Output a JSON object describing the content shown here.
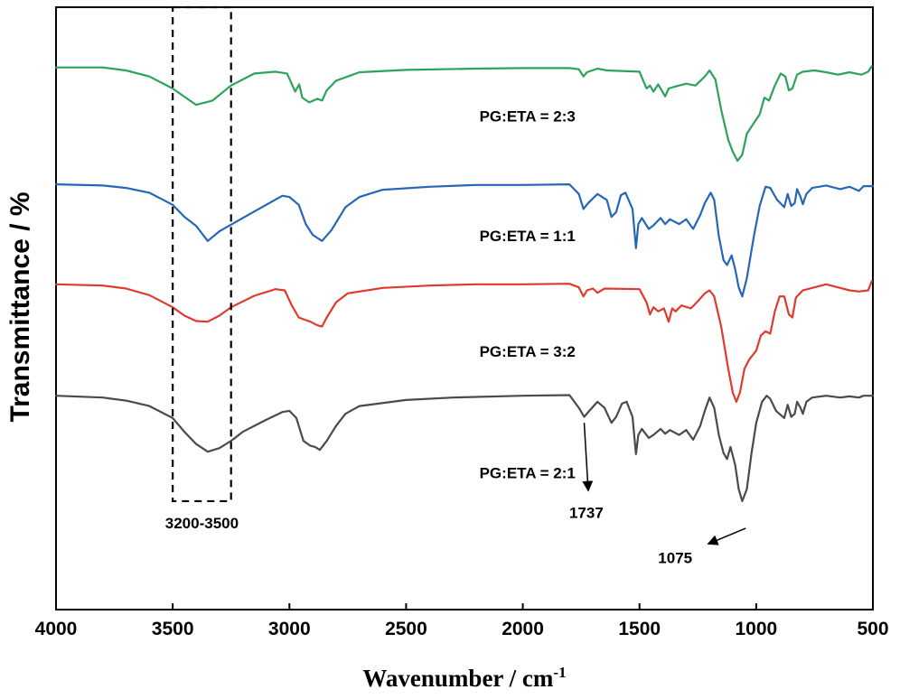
{
  "chart_data": {
    "type": "line",
    "title": "",
    "xlabel": "Wavenumber / cm",
    "xlabel_sup": "-1",
    "ylabel": "Transmittance / %",
    "xlim": [
      4000,
      500
    ],
    "x_reversed": true,
    "ylim": [
      0,
      1
    ],
    "y_ticks_shown": false,
    "grid": false,
    "x_ticks": [
      4000,
      3500,
      3000,
      2500,
      2000,
      1500,
      1000,
      500
    ],
    "x_tick_labels": [
      "4000",
      "3500",
      "3000",
      "2500",
      "2000",
      "1500",
      "1000",
      "500"
    ],
    "series": [
      {
        "name": "PG:ETA = 2:3",
        "color": "#2ca25a",
        "label": "PG:ETA = 2:3",
        "points": [
          [
            4000,
            0.9
          ],
          [
            3800,
            0.9
          ],
          [
            3700,
            0.895
          ],
          [
            3600,
            0.885
          ],
          [
            3500,
            0.865
          ],
          [
            3400,
            0.838
          ],
          [
            3330,
            0.845
          ],
          [
            3250,
            0.87
          ],
          [
            3150,
            0.89
          ],
          [
            3060,
            0.893
          ],
          [
            3010,
            0.89
          ],
          [
            2975,
            0.86
          ],
          [
            2958,
            0.872
          ],
          [
            2945,
            0.85
          ],
          [
            2915,
            0.842
          ],
          [
            2880,
            0.848
          ],
          [
            2860,
            0.845
          ],
          [
            2840,
            0.862
          ],
          [
            2800,
            0.878
          ],
          [
            2700,
            0.892
          ],
          [
            2500,
            0.896
          ],
          [
            2200,
            0.898
          ],
          [
            2000,
            0.899
          ],
          [
            1800,
            0.899
          ],
          [
            1760,
            0.897
          ],
          [
            1740,
            0.885
          ],
          [
            1725,
            0.892
          ],
          [
            1680,
            0.898
          ],
          [
            1640,
            0.895
          ],
          [
            1500,
            0.893
          ],
          [
            1470,
            0.865
          ],
          [
            1455,
            0.87
          ],
          [
            1440,
            0.86
          ],
          [
            1420,
            0.872
          ],
          [
            1390,
            0.852
          ],
          [
            1375,
            0.865
          ],
          [
            1350,
            0.868
          ],
          [
            1300,
            0.873
          ],
          [
            1260,
            0.87
          ],
          [
            1220,
            0.885
          ],
          [
            1200,
            0.895
          ],
          [
            1175,
            0.88
          ],
          [
            1150,
            0.83
          ],
          [
            1120,
            0.78
          ],
          [
            1100,
            0.76
          ],
          [
            1080,
            0.745
          ],
          [
            1060,
            0.755
          ],
          [
            1040,
            0.79
          ],
          [
            1010,
            0.808
          ],
          [
            985,
            0.822
          ],
          [
            965,
            0.85
          ],
          [
            945,
            0.845
          ],
          [
            920,
            0.87
          ],
          [
            895,
            0.89
          ],
          [
            875,
            0.885
          ],
          [
            860,
            0.862
          ],
          [
            845,
            0.865
          ],
          [
            825,
            0.888
          ],
          [
            800,
            0.893
          ],
          [
            750,
            0.895
          ],
          [
            700,
            0.892
          ],
          [
            650,
            0.888
          ],
          [
            600,
            0.892
          ],
          [
            550,
            0.888
          ],
          [
            520,
            0.893
          ],
          [
            505,
            0.902
          ]
        ]
      },
      {
        "name": "PG:ETA = 1:1",
        "color": "#2566b6",
        "label": "PG:ETA = 1:1",
        "points": [
          [
            4000,
            0.706
          ],
          [
            3800,
            0.704
          ],
          [
            3700,
            0.7
          ],
          [
            3600,
            0.692
          ],
          [
            3500,
            0.672
          ],
          [
            3450,
            0.652
          ],
          [
            3400,
            0.637
          ],
          [
            3350,
            0.612
          ],
          [
            3300,
            0.628
          ],
          [
            3200,
            0.65
          ],
          [
            3100,
            0.672
          ],
          [
            3030,
            0.687
          ],
          [
            3000,
            0.685
          ],
          [
            2960,
            0.672
          ],
          [
            2930,
            0.64
          ],
          [
            2900,
            0.622
          ],
          [
            2880,
            0.617
          ],
          [
            2860,
            0.612
          ],
          [
            2820,
            0.63
          ],
          [
            2760,
            0.668
          ],
          [
            2700,
            0.685
          ],
          [
            2600,
            0.697
          ],
          [
            2400,
            0.702
          ],
          [
            2200,
            0.705
          ],
          [
            2000,
            0.705
          ],
          [
            1800,
            0.706
          ],
          [
            1760,
            0.69
          ],
          [
            1740,
            0.665
          ],
          [
            1720,
            0.675
          ],
          [
            1680,
            0.69
          ],
          [
            1640,
            0.68
          ],
          [
            1620,
            0.652
          ],
          [
            1600,
            0.66
          ],
          [
            1580,
            0.688
          ],
          [
            1560,
            0.692
          ],
          [
            1530,
            0.665
          ],
          [
            1515,
            0.6
          ],
          [
            1505,
            0.64
          ],
          [
            1490,
            0.65
          ],
          [
            1460,
            0.632
          ],
          [
            1440,
            0.638
          ],
          [
            1410,
            0.65
          ],
          [
            1390,
            0.64
          ],
          [
            1370,
            0.648
          ],
          [
            1330,
            0.64
          ],
          [
            1300,
            0.648
          ],
          [
            1270,
            0.632
          ],
          [
            1240,
            0.655
          ],
          [
            1220,
            0.675
          ],
          [
            1195,
            0.692
          ],
          [
            1180,
            0.68
          ],
          [
            1160,
            0.62
          ],
          [
            1140,
            0.58
          ],
          [
            1125,
            0.572
          ],
          [
            1105,
            0.588
          ],
          [
            1090,
            0.565
          ],
          [
            1075,
            0.535
          ],
          [
            1060,
            0.52
          ],
          [
            1040,
            0.55
          ],
          [
            1010,
            0.62
          ],
          [
            985,
            0.67
          ],
          [
            960,
            0.702
          ],
          [
            940,
            0.7
          ],
          [
            910,
            0.68
          ],
          [
            880,
            0.668
          ],
          [
            865,
            0.69
          ],
          [
            850,
            0.67
          ],
          [
            835,
            0.675
          ],
          [
            825,
            0.698
          ],
          [
            810,
            0.685
          ],
          [
            800,
            0.673
          ],
          [
            785,
            0.69
          ],
          [
            760,
            0.7
          ],
          [
            700,
            0.704
          ],
          [
            640,
            0.698
          ],
          [
            600,
            0.702
          ],
          [
            560,
            0.695
          ],
          [
            540,
            0.703
          ],
          [
            500,
            0.703
          ]
        ]
      },
      {
        "name": "PG:ETA = 3:2",
        "color": "#e03a2c",
        "label": "PG:ETA = 3:2",
        "points": [
          [
            4000,
            0.54
          ],
          [
            3800,
            0.538
          ],
          [
            3700,
            0.533
          ],
          [
            3600,
            0.522
          ],
          [
            3500,
            0.502
          ],
          [
            3450,
            0.488
          ],
          [
            3400,
            0.479
          ],
          [
            3350,
            0.478
          ],
          [
            3300,
            0.488
          ],
          [
            3250,
            0.502
          ],
          [
            3150,
            0.521
          ],
          [
            3060,
            0.532
          ],
          [
            3020,
            0.53
          ],
          [
            2990,
            0.505
          ],
          [
            2960,
            0.485
          ],
          [
            2940,
            0.482
          ],
          [
            2910,
            0.478
          ],
          [
            2880,
            0.472
          ],
          [
            2860,
            0.47
          ],
          [
            2840,
            0.485
          ],
          [
            2800,
            0.51
          ],
          [
            2750,
            0.525
          ],
          [
            2600,
            0.534
          ],
          [
            2400,
            0.538
          ],
          [
            2200,
            0.54
          ],
          [
            2000,
            0.54
          ],
          [
            1800,
            0.541
          ],
          [
            1760,
            0.535
          ],
          [
            1740,
            0.52
          ],
          [
            1725,
            0.53
          ],
          [
            1700,
            0.533
          ],
          [
            1680,
            0.526
          ],
          [
            1650,
            0.533
          ],
          [
            1500,
            0.532
          ],
          [
            1470,
            0.51
          ],
          [
            1455,
            0.49
          ],
          [
            1440,
            0.502
          ],
          [
            1420,
            0.495
          ],
          [
            1395,
            0.5
          ],
          [
            1375,
            0.478
          ],
          [
            1360,
            0.5
          ],
          [
            1345,
            0.495
          ],
          [
            1320,
            0.505
          ],
          [
            1280,
            0.5
          ],
          [
            1250,
            0.512
          ],
          [
            1220,
            0.525
          ],
          [
            1200,
            0.53
          ],
          [
            1180,
            0.52
          ],
          [
            1150,
            0.47
          ],
          [
            1120,
            0.4
          ],
          [
            1100,
            0.36
          ],
          [
            1085,
            0.345
          ],
          [
            1070,
            0.36
          ],
          [
            1050,
            0.4
          ],
          [
            1030,
            0.415
          ],
          [
            1000,
            0.43
          ],
          [
            980,
            0.455
          ],
          [
            960,
            0.462
          ],
          [
            940,
            0.458
          ],
          [
            920,
            0.495
          ],
          [
            900,
            0.52
          ],
          [
            880,
            0.52
          ],
          [
            860,
            0.49
          ],
          [
            845,
            0.485
          ],
          [
            830,
            0.518
          ],
          [
            800,
            0.53
          ],
          [
            700,
            0.54
          ],
          [
            650,
            0.535
          ],
          [
            600,
            0.53
          ],
          [
            560,
            0.528
          ],
          [
            520,
            0.53
          ],
          [
            505,
            0.545
          ]
        ]
      },
      {
        "name": "PG:ETA = 2:1",
        "color": "#4a4a4a",
        "label": "PG:ETA = 2:1",
        "points": [
          [
            4000,
            0.355
          ],
          [
            3800,
            0.352
          ],
          [
            3700,
            0.347
          ],
          [
            3600,
            0.338
          ],
          [
            3500,
            0.318
          ],
          [
            3450,
            0.295
          ],
          [
            3400,
            0.275
          ],
          [
            3350,
            0.262
          ],
          [
            3300,
            0.268
          ],
          [
            3250,
            0.28
          ],
          [
            3200,
            0.295
          ],
          [
            3100,
            0.315
          ],
          [
            3030,
            0.328
          ],
          [
            3000,
            0.33
          ],
          [
            2970,
            0.318
          ],
          [
            2940,
            0.28
          ],
          [
            2910,
            0.272
          ],
          [
            2890,
            0.27
          ],
          [
            2870,
            0.265
          ],
          [
            2840,
            0.28
          ],
          [
            2800,
            0.305
          ],
          [
            2760,
            0.325
          ],
          [
            2700,
            0.338
          ],
          [
            2500,
            0.348
          ],
          [
            2300,
            0.352
          ],
          [
            2000,
            0.355
          ],
          [
            1800,
            0.356
          ],
          [
            1760,
            0.335
          ],
          [
            1737,
            0.32
          ],
          [
            1715,
            0.33
          ],
          [
            1680,
            0.345
          ],
          [
            1650,
            0.335
          ],
          [
            1620,
            0.31
          ],
          [
            1600,
            0.32
          ],
          [
            1575,
            0.342
          ],
          [
            1555,
            0.345
          ],
          [
            1530,
            0.32
          ],
          [
            1515,
            0.258
          ],
          [
            1505,
            0.29
          ],
          [
            1490,
            0.3
          ],
          [
            1460,
            0.285
          ],
          [
            1440,
            0.29
          ],
          [
            1410,
            0.3
          ],
          [
            1390,
            0.292
          ],
          [
            1370,
            0.298
          ],
          [
            1330,
            0.29
          ],
          [
            1300,
            0.298
          ],
          [
            1270,
            0.282
          ],
          [
            1240,
            0.305
          ],
          [
            1220,
            0.33
          ],
          [
            1200,
            0.352
          ],
          [
            1180,
            0.335
          ],
          [
            1160,
            0.29
          ],
          [
            1140,
            0.26
          ],
          [
            1125,
            0.25
          ],
          [
            1110,
            0.27
          ],
          [
            1090,
            0.24
          ],
          [
            1075,
            0.2
          ],
          [
            1060,
            0.18
          ],
          [
            1040,
            0.2
          ],
          [
            1020,
            0.26
          ],
          [
            1000,
            0.31
          ],
          [
            975,
            0.345
          ],
          [
            955,
            0.355
          ],
          [
            940,
            0.35
          ],
          [
            915,
            0.33
          ],
          [
            880,
            0.318
          ],
          [
            865,
            0.34
          ],
          [
            850,
            0.32
          ],
          [
            835,
            0.325
          ],
          [
            825,
            0.345
          ],
          [
            810,
            0.335
          ],
          [
            800,
            0.325
          ],
          [
            785,
            0.345
          ],
          [
            760,
            0.352
          ],
          [
            700,
            0.355
          ],
          [
            640,
            0.352
          ],
          [
            600,
            0.354
          ],
          [
            560,
            0.352
          ],
          [
            540,
            0.355
          ],
          [
            500,
            0.355
          ]
        ]
      }
    ],
    "annotations": [
      {
        "label": "3200-3500",
        "type": "dashed-box",
        "x_range": [
          3500,
          3250
        ],
        "y_range": [
          0.18,
          1.0
        ]
      },
      {
        "label": "1737",
        "type": "arrow",
        "x_from": 1737,
        "y_from": 0.31,
        "x_to": 1720,
        "y_to": 0.2
      },
      {
        "label": "1075",
        "type": "arrow",
        "x_from": 1045,
        "y_from": 0.135,
        "x_to": 1200,
        "y_to": 0.11
      }
    ]
  }
}
